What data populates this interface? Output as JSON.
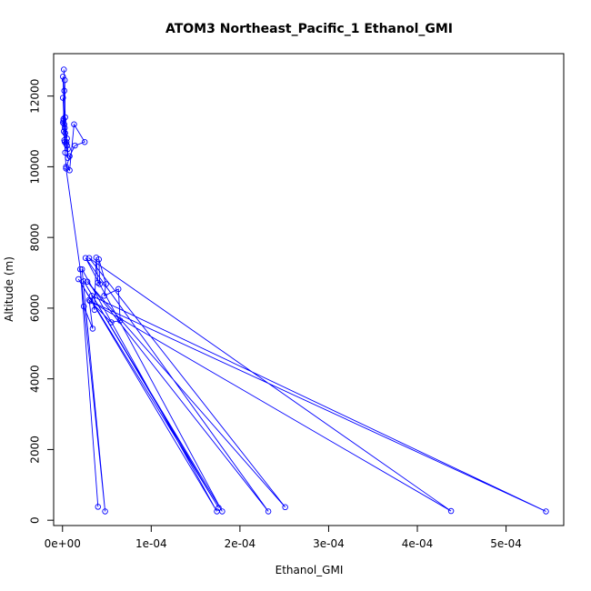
{
  "chart_data": {
    "type": "line",
    "title": "ATOM3 Northeast_Pacific_1 Ethanol_GMI",
    "xlabel": "Ethanol_GMI",
    "ylabel": "Altitude (m)",
    "xlim": [
      -1e-05,
      0.000565
    ],
    "ylim": [
      -150,
      13200
    ],
    "xticks": [
      0,
      0.0001,
      0.0002,
      0.0003,
      0.0004,
      0.0005
    ],
    "xtick_labels": [
      "0e+00",
      "1e-04",
      "2e-04",
      "3e-04",
      "4e-04",
      "5e-04"
    ],
    "yticks": [
      0,
      2000,
      4000,
      6000,
      8000,
      10000,
      12000
    ],
    "ytick_labels": [
      "0",
      "2000",
      "4000",
      "6000",
      "8000",
      "10000",
      "12000"
    ],
    "series_color": "#0000ff",
    "series": [
      {
        "x": [
          1.5e-06,
          5e-07,
          2.5e-06,
          2e-06,
          5e-07,
          3e-06,
          1e-06,
          2e-06,
          2.5e-06,
          3e-06,
          5e-06,
          4.5e-06,
          4e-06,
          5e-06,
          6e-06,
          6e-06,
          1e-06,
          5e-07,
          1.5e-06,
          2e-06,
          2.5e-06,
          3e-06,
          4e-06,
          8e-06,
          1.3e-05,
          2.5e-05,
          1.4e-05,
          8e-06,
          4e-06,
          2e-05,
          2.2e-05,
          1.8e-05,
          2.4e-05,
          2.6e-05,
          2.8e-05,
          3e-05,
          3.1e-05,
          3.3e-05,
          3.6e-05,
          3.8e-05,
          4e-05,
          4.2e-05,
          4.1e-05,
          4.9e-05,
          4.7e-05,
          6.3e-05,
          6.5e-05,
          5.5e-05,
          3e-05,
          3.4e-05,
          2.4e-05,
          4e-05,
          4.8e-05,
          0.000174,
          0.000176,
          0.00018,
          0.000232,
          0.000251,
          0.000438,
          0.000545
        ],
        "y": [
          12750,
          12550,
          12450,
          12150,
          11950,
          11400,
          11300,
          11200,
          11100,
          10950,
          10800,
          10700,
          10650,
          10600,
          10500,
          10250,
          11350,
          11250,
          11000,
          10750,
          10700,
          10400,
          10000,
          9900,
          11200,
          10700,
          10600,
          10300,
          9950,
          7100,
          7100,
          6820,
          6760,
          7420,
          6750,
          7420,
          6200,
          6350,
          5950,
          7430,
          6720,
          6680,
          7380,
          6680,
          6350,
          6540,
          5650,
          5600,
          6230,
          5420,
          6050,
          380,
          250,
          250,
          350,
          250,
          250,
          370,
          260,
          250
        ],
        "order": [
          0,
          2,
          5,
          8,
          1,
          3,
          6,
          10,
          4,
          7,
          9,
          11,
          13,
          12,
          14,
          15,
          16,
          17,
          18,
          19,
          20,
          21,
          22,
          23,
          24,
          25,
          26,
          27,
          28,
          29,
          51,
          29,
          52,
          30,
          53,
          31,
          54,
          32,
          55,
          33,
          56,
          34,
          57,
          35,
          58,
          36,
          59,
          37,
          38,
          39,
          40,
          41,
          42,
          43,
          44,
          45,
          46,
          47,
          48,
          49,
          50
        ]
      }
    ]
  }
}
